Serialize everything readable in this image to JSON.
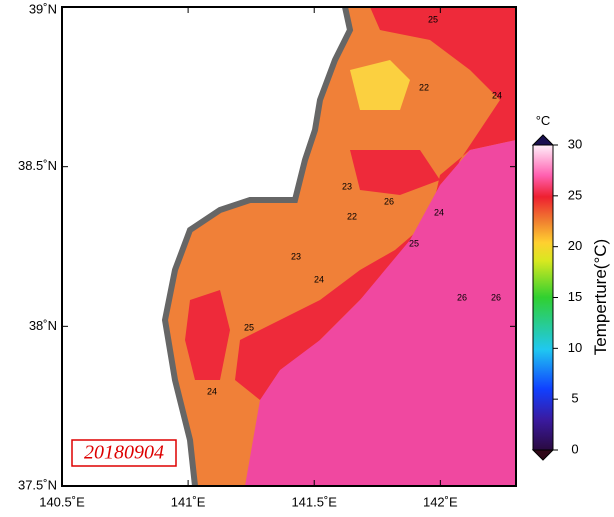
{
  "map": {
    "xlim": [
      140.5,
      142.3
    ],
    "ylim": [
      37.5,
      39
    ],
    "xticks": [
      {
        "value": 140.5,
        "label": "140.5˚E"
      },
      {
        "value": 141,
        "label": "141˚E"
      },
      {
        "value": 141.5,
        "label": "141.5˚E"
      },
      {
        "value": 142,
        "label": "142˚E"
      }
    ],
    "yticks": [
      {
        "value": 37.5,
        "label": "37.5˚N"
      },
      {
        "value": 38,
        "label": "38˚N"
      },
      {
        "value": 38.5,
        "label": "38.5˚N"
      },
      {
        "value": 39,
        "label": "39˚N"
      }
    ],
    "date": "20180904",
    "contour_labels": [
      "25",
      "22",
      "24",
      "23",
      "22",
      "24",
      "23",
      "26",
      "24",
      "26",
      "25",
      "24",
      "25",
      "26"
    ],
    "colorbar": {
      "unit": "°C",
      "title": "Temperture(°C)",
      "lim": [
        0,
        30
      ],
      "ticks": [
        0,
        5,
        10,
        15,
        20,
        25,
        30
      ]
    }
  }
}
